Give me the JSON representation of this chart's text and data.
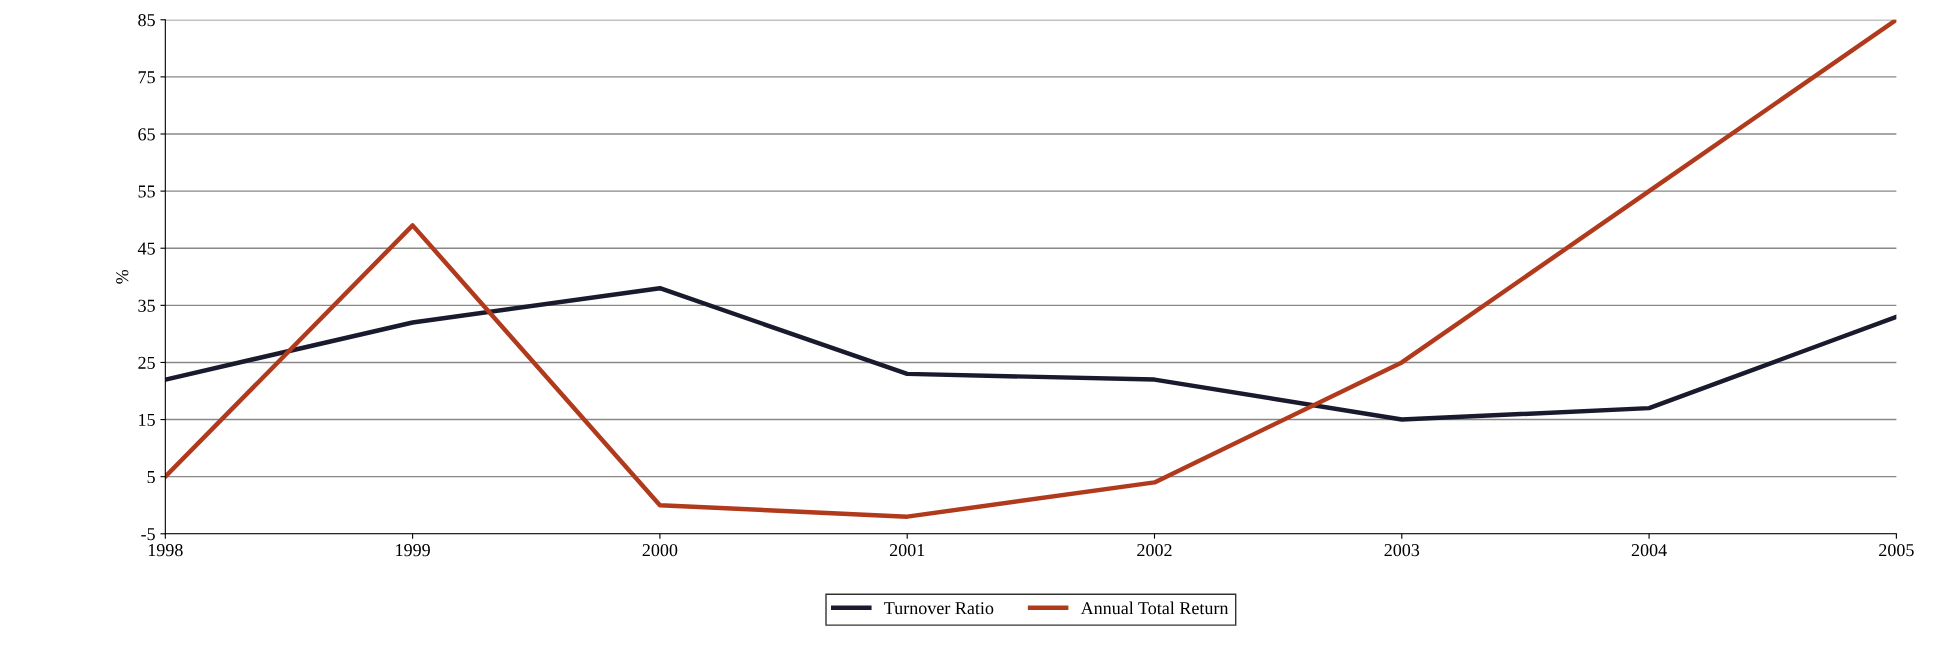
{
  "chart_data": {
    "type": "line",
    "ylabel": "%",
    "categories": [
      "1998",
      "1999",
      "2000",
      "2001",
      "2002",
      "2003",
      "2004",
      "2005"
    ],
    "series": [
      {
        "name": "Turnover Ratio",
        "color": "#1a1a2e",
        "values": [
          22,
          32,
          38,
          23,
          22,
          15,
          17,
          33
        ]
      },
      {
        "name": "Annual Total Return",
        "color": "#b23a1c",
        "values": [
          5,
          49,
          0,
          -2,
          4,
          25,
          55,
          85
        ]
      }
    ],
    "ylim": [
      -5,
      85
    ],
    "yticks": [
      -5,
      5,
      15,
      25,
      35,
      45,
      55,
      65,
      75,
      85
    ],
    "grid": "y",
    "legend": "bottom",
    "marker": "none",
    "line_style": "solid"
  }
}
